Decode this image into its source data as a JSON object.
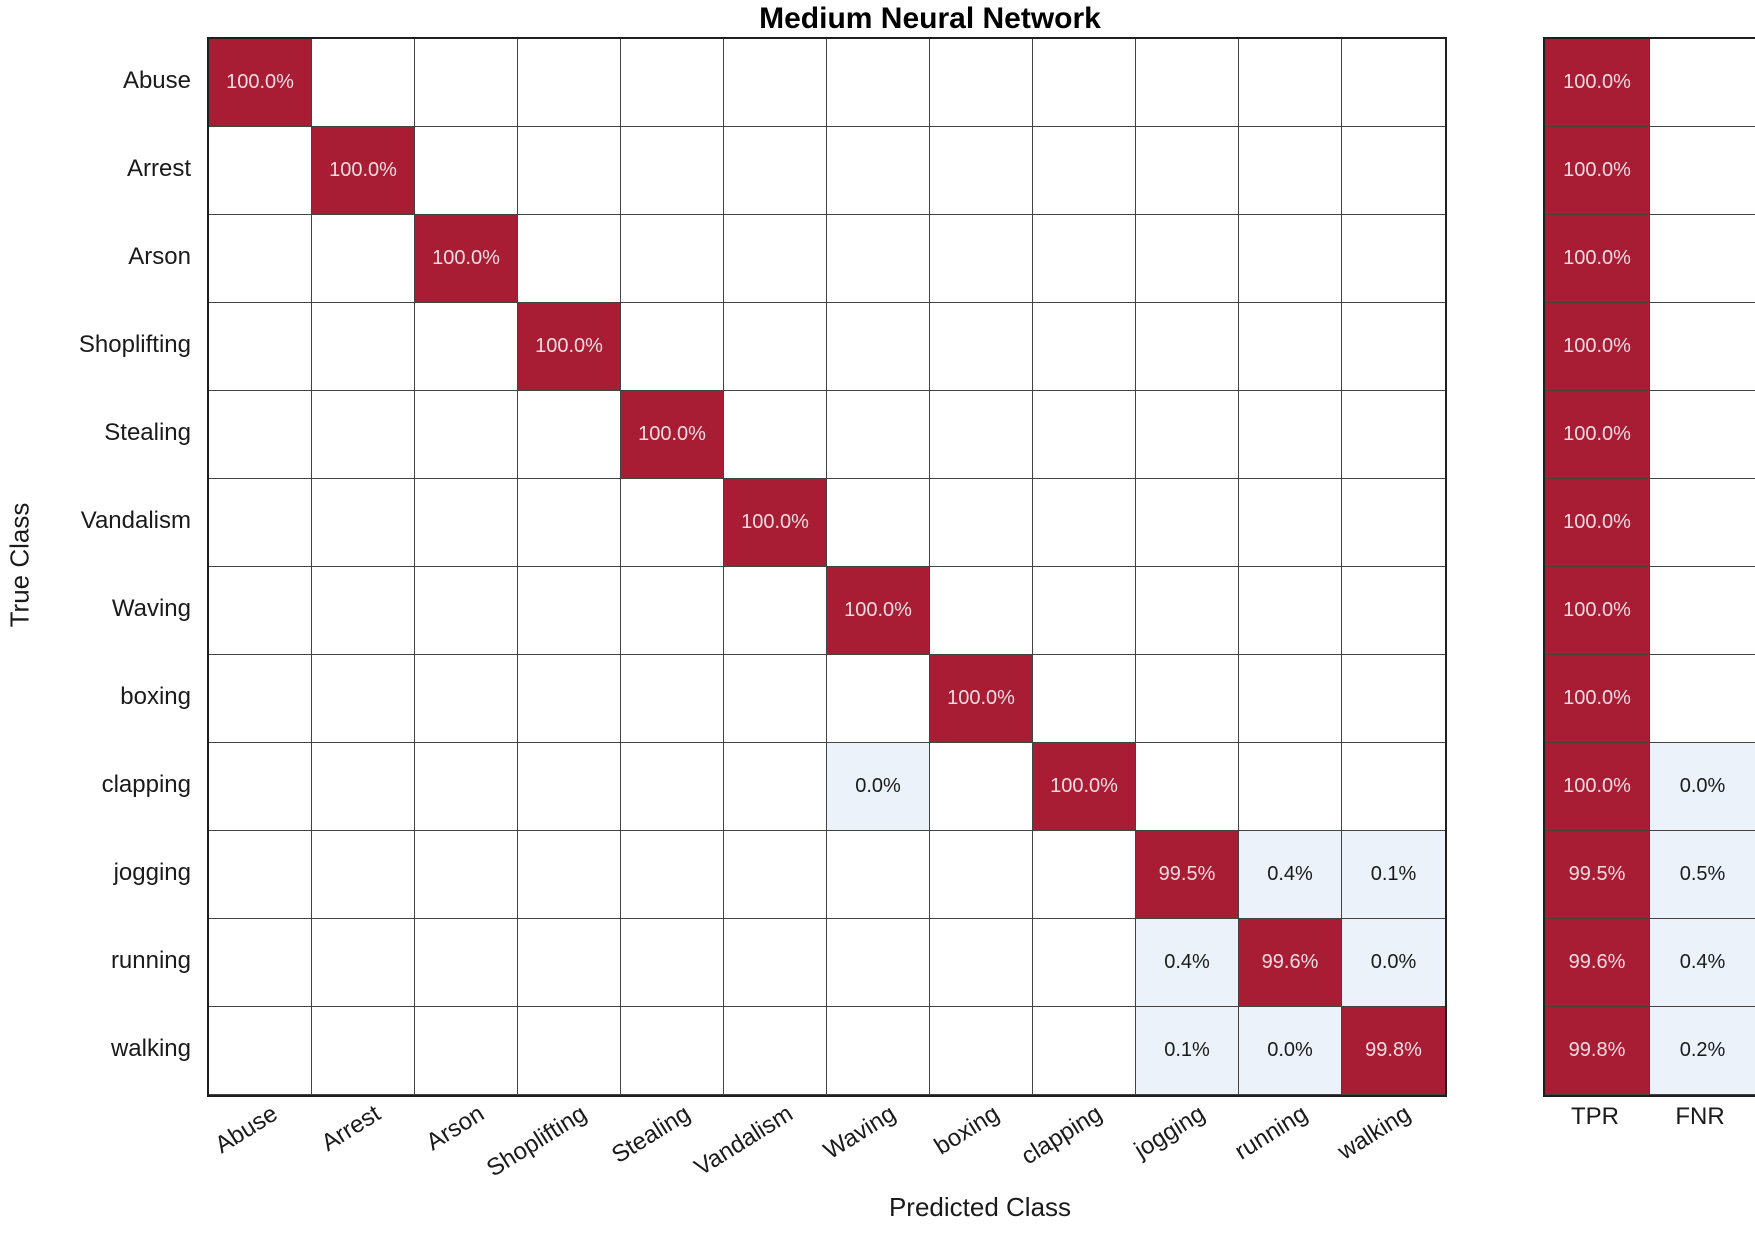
{
  "colors": {
    "diagonal_fill": "#A81D33",
    "off_diagonal_fill": "#EBF2F9",
    "empty_fill": "#FFFFFF",
    "text_on_red": "#F2DCE2",
    "text_dark": "#1A1A1A",
    "grid_line": "#434343",
    "frame": "#1F1F1F"
  },
  "chart_data": {
    "type": "heatmap",
    "subtype": "confusion-matrix",
    "title": "Medium Neural Network",
    "xlabel": "Predicted Class",
    "ylabel": "True Class",
    "legend_position": "none",
    "grid": true,
    "classes": [
      "Abuse",
      "Arrest",
      "Arson",
      "Shoplifting",
      "Stealing",
      "Vandalism",
      "Waving",
      "boxing",
      "clapping",
      "jogging",
      "running",
      "walking"
    ],
    "summary_headers": [
      "TPR",
      "FNR"
    ],
    "matrix_percent": [
      [
        "100.0%",
        "",
        "",
        "",
        "",
        "",
        "",
        "",
        "",
        "",
        "",
        ""
      ],
      [
        "",
        "100.0%",
        "",
        "",
        "",
        "",
        "",
        "",
        "",
        "",
        "",
        ""
      ],
      [
        "",
        "",
        "100.0%",
        "",
        "",
        "",
        "",
        "",
        "",
        "",
        "",
        ""
      ],
      [
        "",
        "",
        "",
        "100.0%",
        "",
        "",
        "",
        "",
        "",
        "",
        "",
        ""
      ],
      [
        "",
        "",
        "",
        "",
        "100.0%",
        "",
        "",
        "",
        "",
        "",
        "",
        ""
      ],
      [
        "",
        "",
        "",
        "",
        "",
        "100.0%",
        "",
        "",
        "",
        "",
        "",
        ""
      ],
      [
        "",
        "",
        "",
        "",
        "",
        "",
        "100.0%",
        "",
        "",
        "",
        "",
        ""
      ],
      [
        "",
        "",
        "",
        "",
        "",
        "",
        "",
        "100.0%",
        "",
        "",
        "",
        ""
      ],
      [
        "",
        "",
        "",
        "",
        "",
        "",
        "0.0%",
        "",
        "100.0%",
        "",
        "",
        ""
      ],
      [
        "",
        "",
        "",
        "",
        "",
        "",
        "",
        "",
        "",
        "99.5%",
        "0.4%",
        "0.1%"
      ],
      [
        "",
        "",
        "",
        "",
        "",
        "",
        "",
        "",
        "",
        "0.4%",
        "99.6%",
        "0.0%"
      ],
      [
        "",
        "",
        "",
        "",
        "",
        "",
        "",
        "",
        "",
        "0.1%",
        "0.0%",
        "99.8%"
      ]
    ],
    "summary_columns": {
      "TPR": [
        "100.0%",
        "100.0%",
        "100.0%",
        "100.0%",
        "100.0%",
        "100.0%",
        "100.0%",
        "100.0%",
        "100.0%",
        "99.5%",
        "99.6%",
        "99.8%"
      ],
      "FNR": [
        "",
        "",
        "",
        "",
        "",
        "",
        "",
        "",
        "0.0%",
        "0.5%",
        "0.4%",
        "0.2%"
      ]
    }
  }
}
